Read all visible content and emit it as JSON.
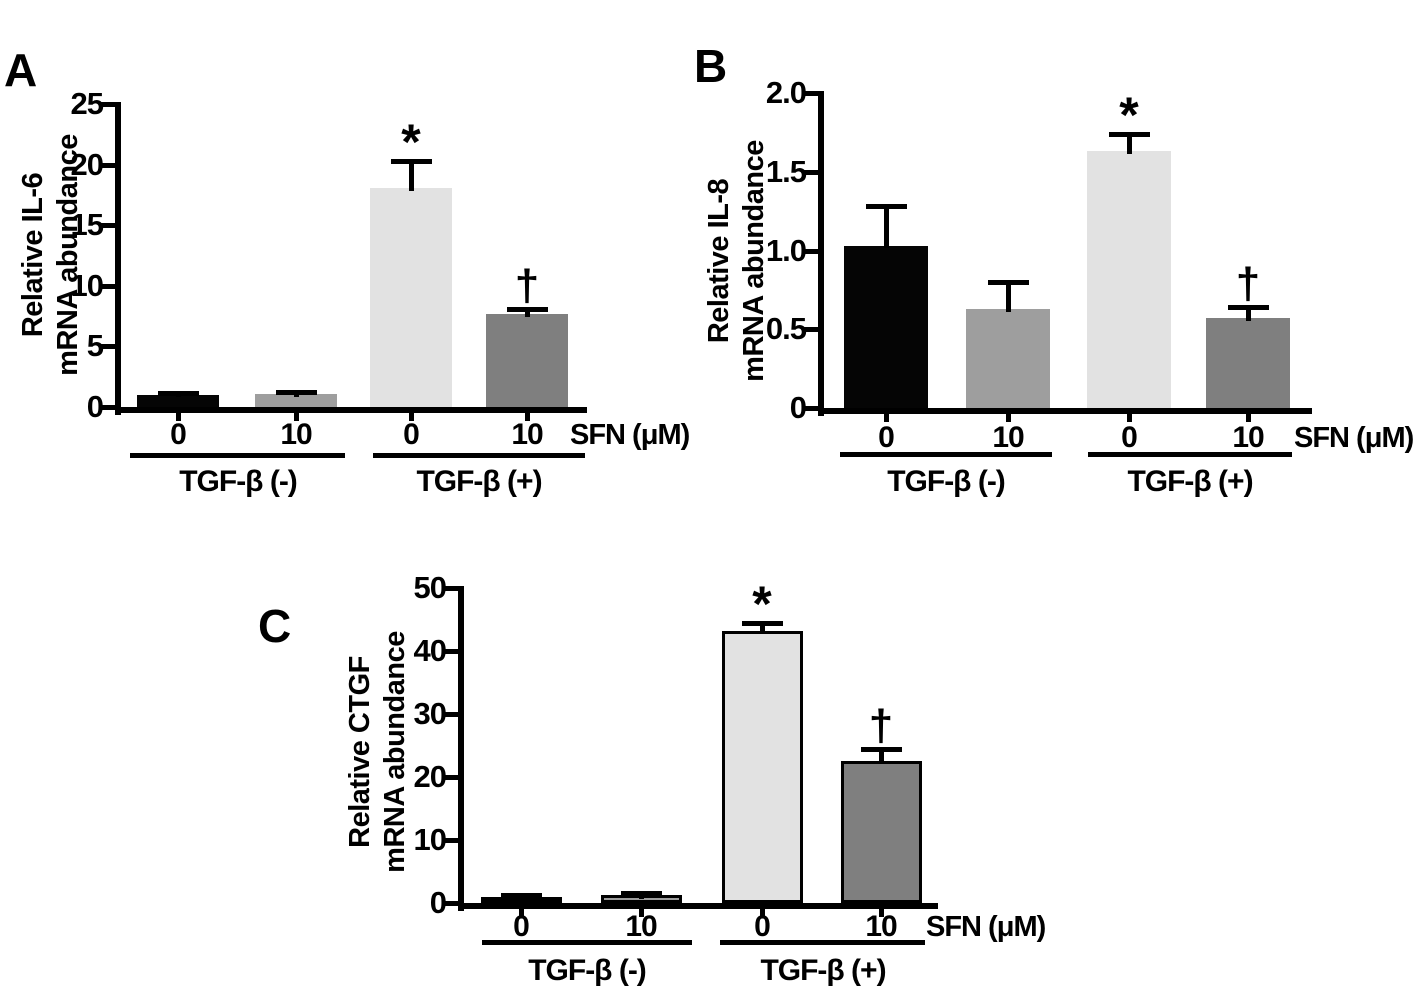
{
  "figure": {
    "background": "#ffffff",
    "text_color": "#000000"
  },
  "chart_data": [
    {
      "type": "bar",
      "panel": "A",
      "ylabel_lines": [
        "Relative IL-6",
        "mRNA abundance"
      ],
      "ylabel": "Relative IL-6 mRNA abundance",
      "ylim": [
        0,
        25
      ],
      "ytick_labels": [
        "0",
        "5",
        "10",
        "15",
        "20",
        "25"
      ],
      "categories": [
        "0",
        "10",
        "0",
        "10"
      ],
      "values": [
        1.0,
        1.05,
        18.1,
        7.7
      ],
      "errors": [
        0.12,
        0.2,
        2.2,
        0.4
      ],
      "annotations": [
        "",
        "",
        "*",
        "†"
      ],
      "bar_color_names": [
        "black",
        "medium-gray",
        "light-gray",
        "dark-gray"
      ],
      "bar_colors": [
        "#050505",
        "#9e9e9e",
        "#e2e2e2",
        "#7f7f7f"
      ],
      "x_axis_label": "SFN (μM)",
      "groups": [
        {
          "label": "TGF-β (-)",
          "bars": [
            0,
            1
          ]
        },
        {
          "label": "TGF-β (+)",
          "bars": [
            2,
            3
          ]
        }
      ],
      "grid": false,
      "legend": "none"
    },
    {
      "type": "bar",
      "panel": "B",
      "ylabel_lines": [
        "Relative IL-8",
        "mRNA abundance"
      ],
      "ylabel": "Relative IL-8 mRNA abundance",
      "ylim": [
        0,
        2.0
      ],
      "ytick_labels": [
        "0",
        "0.5",
        "1.0",
        "1.5",
        "2.0"
      ],
      "categories": [
        "0",
        "10",
        "0",
        "10"
      ],
      "values": [
        1.03,
        0.63,
        1.63,
        0.57
      ],
      "errors": [
        0.25,
        0.17,
        0.11,
        0.07
      ],
      "annotations": [
        "",
        "",
        "*",
        "†"
      ],
      "bar_color_names": [
        "black",
        "medium-gray",
        "light-gray",
        "dark-gray"
      ],
      "bar_colors": [
        "#050505",
        "#9e9e9e",
        "#e2e2e2",
        "#7f7f7f"
      ],
      "x_axis_label": "SFN (μM)",
      "groups": [
        {
          "label": "TGF-β (-)",
          "bars": [
            0,
            1
          ]
        },
        {
          "label": "TGF-β (+)",
          "bars": [
            2,
            3
          ]
        }
      ],
      "grid": false,
      "legend": "none"
    },
    {
      "type": "bar",
      "panel": "C",
      "ylabel_lines": [
        "Relative CTGF",
        "mRNA abundance"
      ],
      "ylabel": "Relative CTGF mRNA abundance",
      "ylim": [
        0,
        50
      ],
      "ytick_labels": [
        "0",
        "10",
        "20",
        "30",
        "40",
        "50"
      ],
      "categories": [
        "0",
        "10",
        "0",
        "10"
      ],
      "values": [
        1.0,
        1.2,
        43.2,
        22.6
      ],
      "errors": [
        0.3,
        0.4,
        1.3,
        1.8
      ],
      "annotations": [
        "",
        "",
        "*",
        "†"
      ],
      "bar_color_names": [
        "black",
        "medium-gray",
        "light-gray",
        "dark-gray"
      ],
      "bar_colors": [
        "#050505",
        "#9e9e9e",
        "#e2e2e2",
        "#7f7f7f"
      ],
      "x_axis_label": "SFN (μM)",
      "groups": [
        {
          "label": "TGF-β (-)",
          "bars": [
            0,
            1
          ]
        },
        {
          "label": "TGF-β (+)",
          "bars": [
            2,
            3
          ]
        }
      ],
      "grid": false,
      "legend": "none"
    }
  ]
}
